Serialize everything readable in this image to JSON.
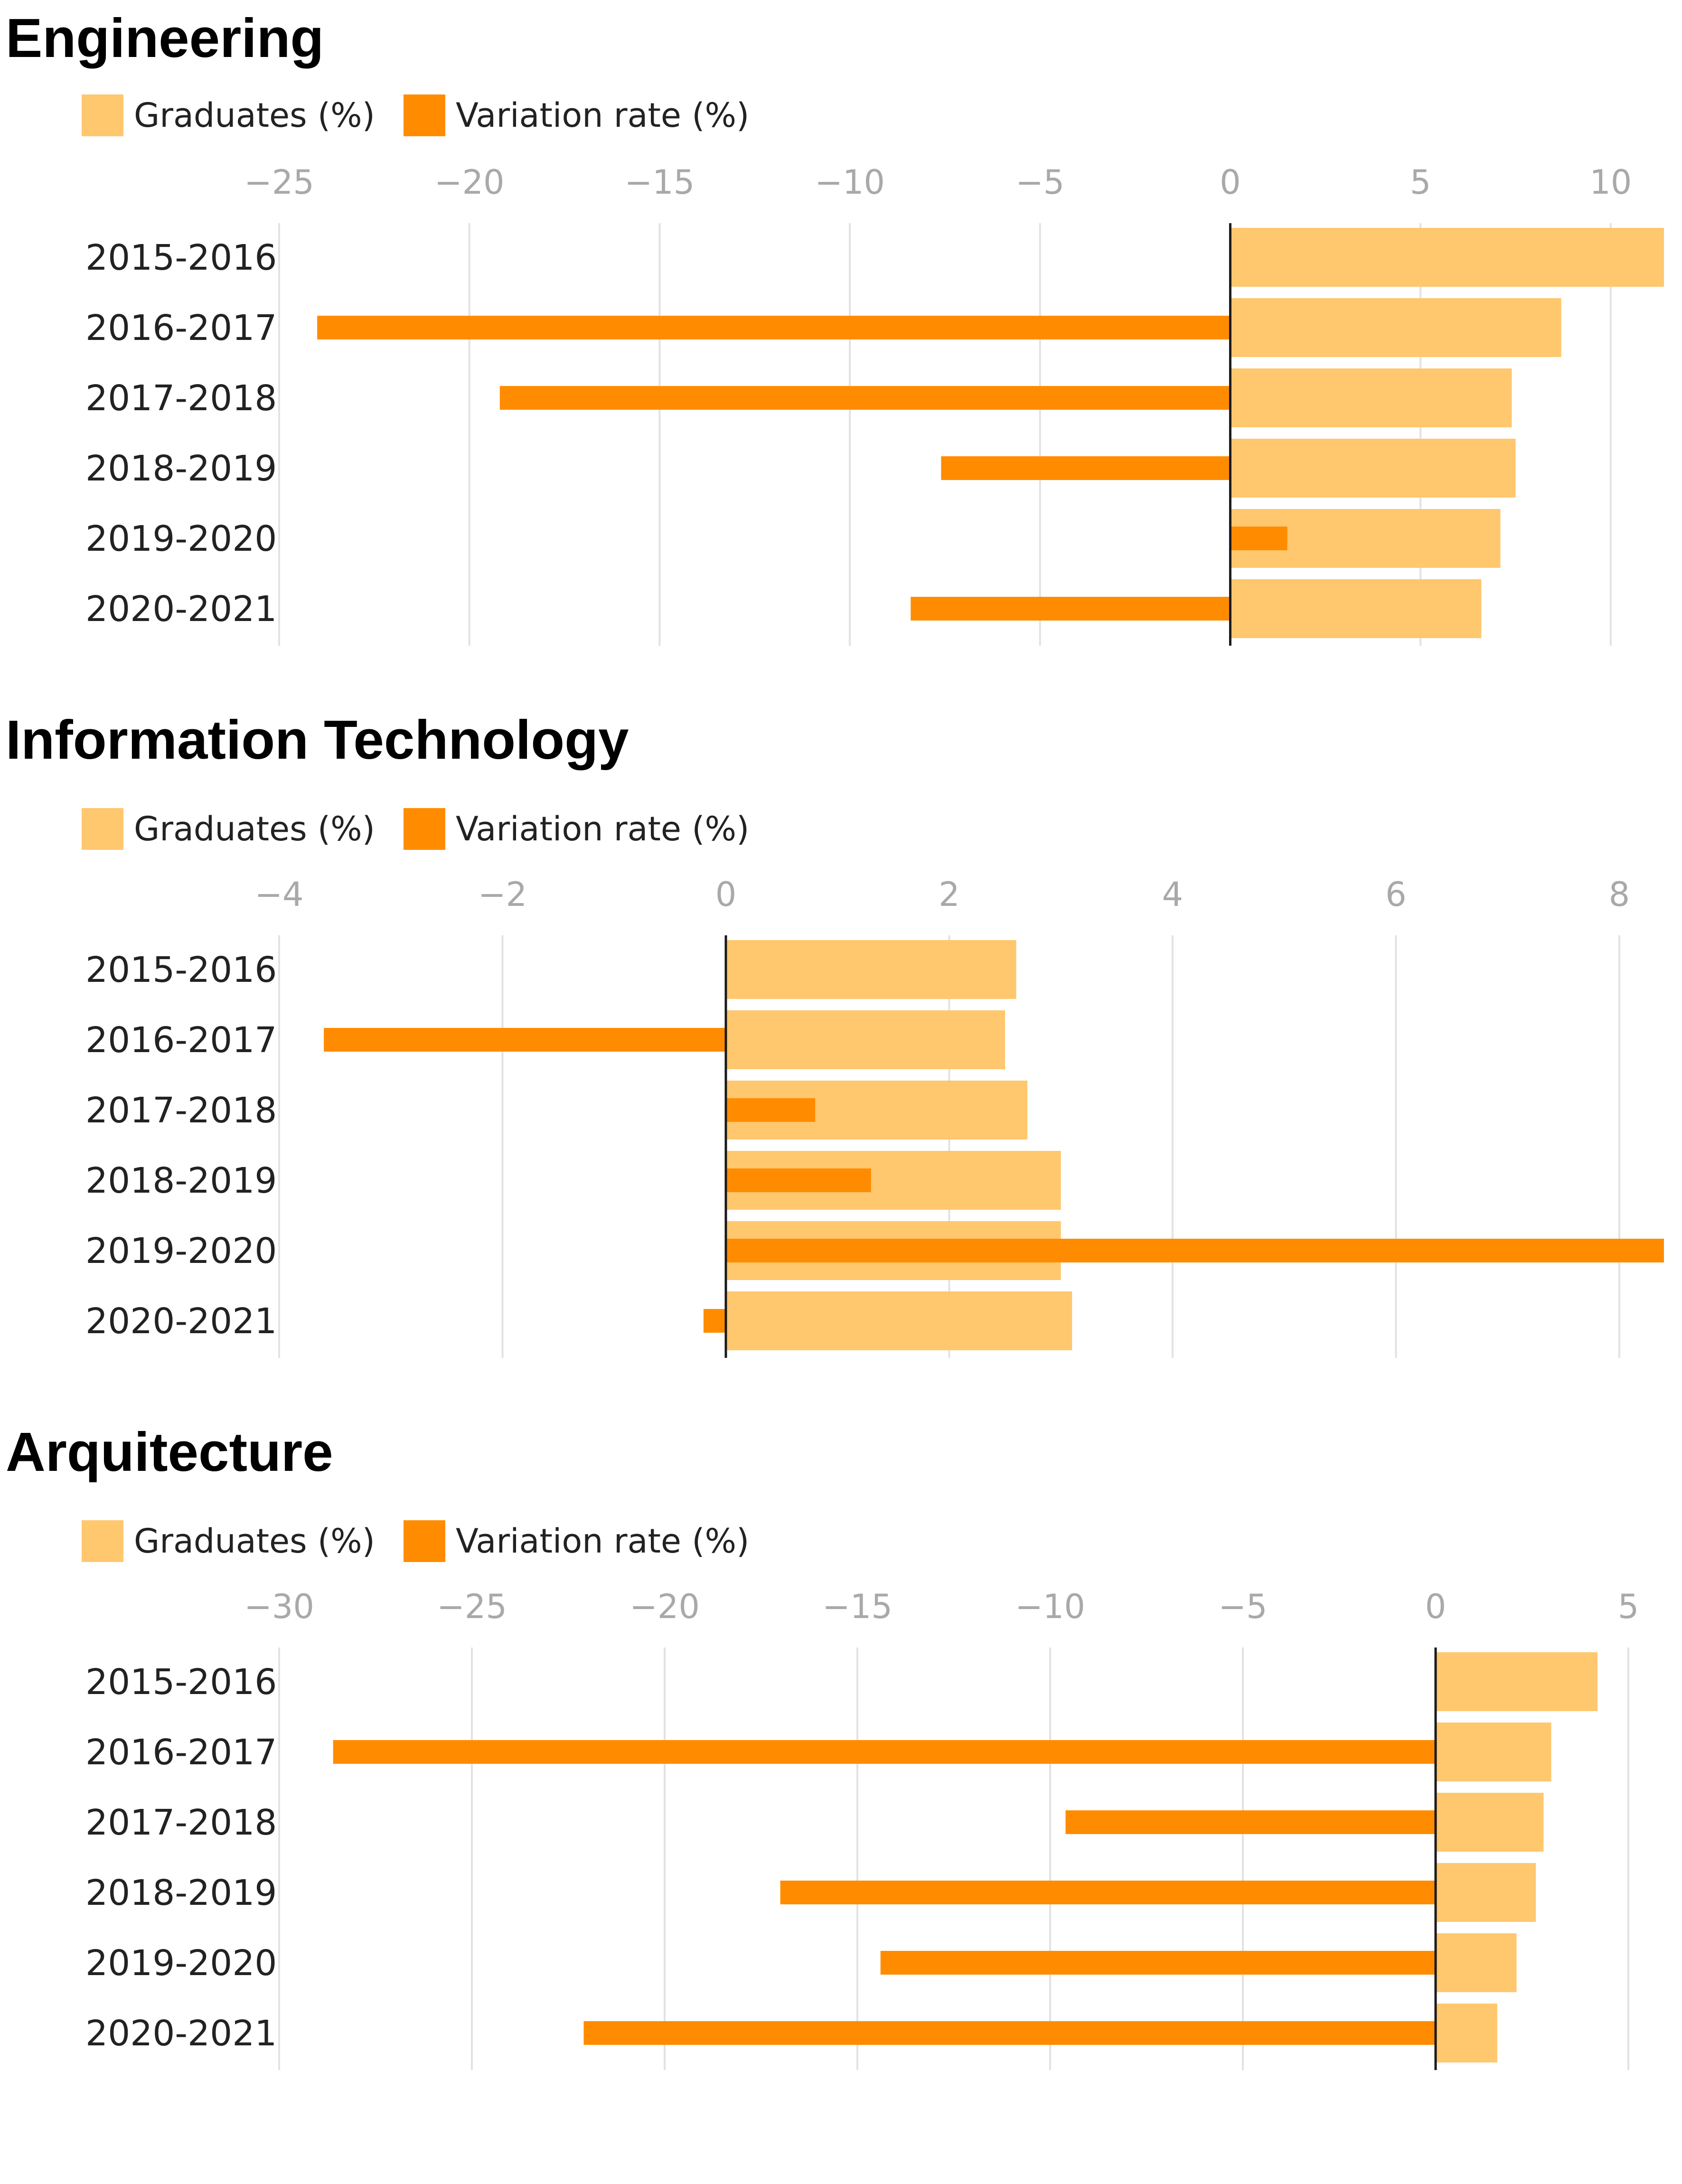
{
  "colors": {
    "graduates": "#ffc76e",
    "variation": "#ff8c00",
    "grid": "#e2e2e2",
    "zero_line": "#1a1a1a"
  },
  "legend": {
    "graduates_label": "Graduates (%)",
    "variation_label": "Variation rate (%)"
  },
  "chart_data": [
    {
      "type": "bar",
      "orientation": "horizontal",
      "title": "Engineering",
      "categories": [
        "2015-2016",
        "2016-2017",
        "2017-2018",
        "2018-2019",
        "2019-2020",
        "2020-2021"
      ],
      "xlim": [
        -25,
        11.4
      ],
      "ticks": [
        -25,
        -20,
        -15,
        -10,
        -5,
        0,
        5,
        10
      ],
      "tick_labels": [
        "−25",
        "−20",
        "−15",
        "−10",
        "−5",
        "0",
        "5",
        "10"
      ],
      "grid": true,
      "legend_position": "top-left",
      "series": [
        {
          "name": "Graduates (%)",
          "values": [
            11.4,
            8.7,
            7.4,
            7.5,
            7.1,
            6.6
          ]
        },
        {
          "name": "Variation rate (%)",
          "values": [
            null,
            -24.0,
            -19.2,
            -7.6,
            1.5,
            -8.4
          ]
        }
      ]
    },
    {
      "type": "bar",
      "orientation": "horizontal",
      "title": "Information Technology",
      "categories": [
        "2015-2016",
        "2016-2017",
        "2017-2018",
        "2018-2019",
        "2019-2020",
        "2020-2021"
      ],
      "xlim": [
        -4,
        8.4
      ],
      "ticks": [
        -4,
        -2,
        0,
        2,
        4,
        6,
        8
      ],
      "tick_labels": [
        "−4",
        "−2",
        "0",
        "2",
        "4",
        "6",
        "8"
      ],
      "grid": true,
      "legend_position": "top-left",
      "series": [
        {
          "name": "Graduates (%)",
          "values": [
            2.6,
            2.5,
            2.7,
            3.0,
            3.0,
            3.1
          ]
        },
        {
          "name": "Variation rate (%)",
          "values": [
            null,
            -3.6,
            0.8,
            1.3,
            8.4,
            -0.2
          ]
        }
      ]
    },
    {
      "type": "bar",
      "orientation": "horizontal",
      "title": "Arquitecture",
      "categories": [
        "2015-2016",
        "2016-2017",
        "2017-2018",
        "2018-2019",
        "2019-2020",
        "2020-2021"
      ],
      "xlim": [
        -30,
        5
      ],
      "ticks": [
        -30,
        -25,
        -20,
        -15,
        -10,
        -5,
        0,
        5
      ],
      "tick_labels": [
        "−30",
        "−25",
        "−20",
        "−15",
        "−10",
        "−5",
        "0",
        "5"
      ],
      "grid": true,
      "legend_position": "top-left",
      "series": [
        {
          "name": "Graduates (%)",
          "values": [
            4.2,
            3.0,
            2.8,
            2.6,
            2.1,
            1.6
          ]
        },
        {
          "name": "Variation rate (%)",
          "values": [
            null,
            -28.6,
            -9.6,
            -17.0,
            -14.4,
            -22.1
          ]
        }
      ]
    }
  ]
}
